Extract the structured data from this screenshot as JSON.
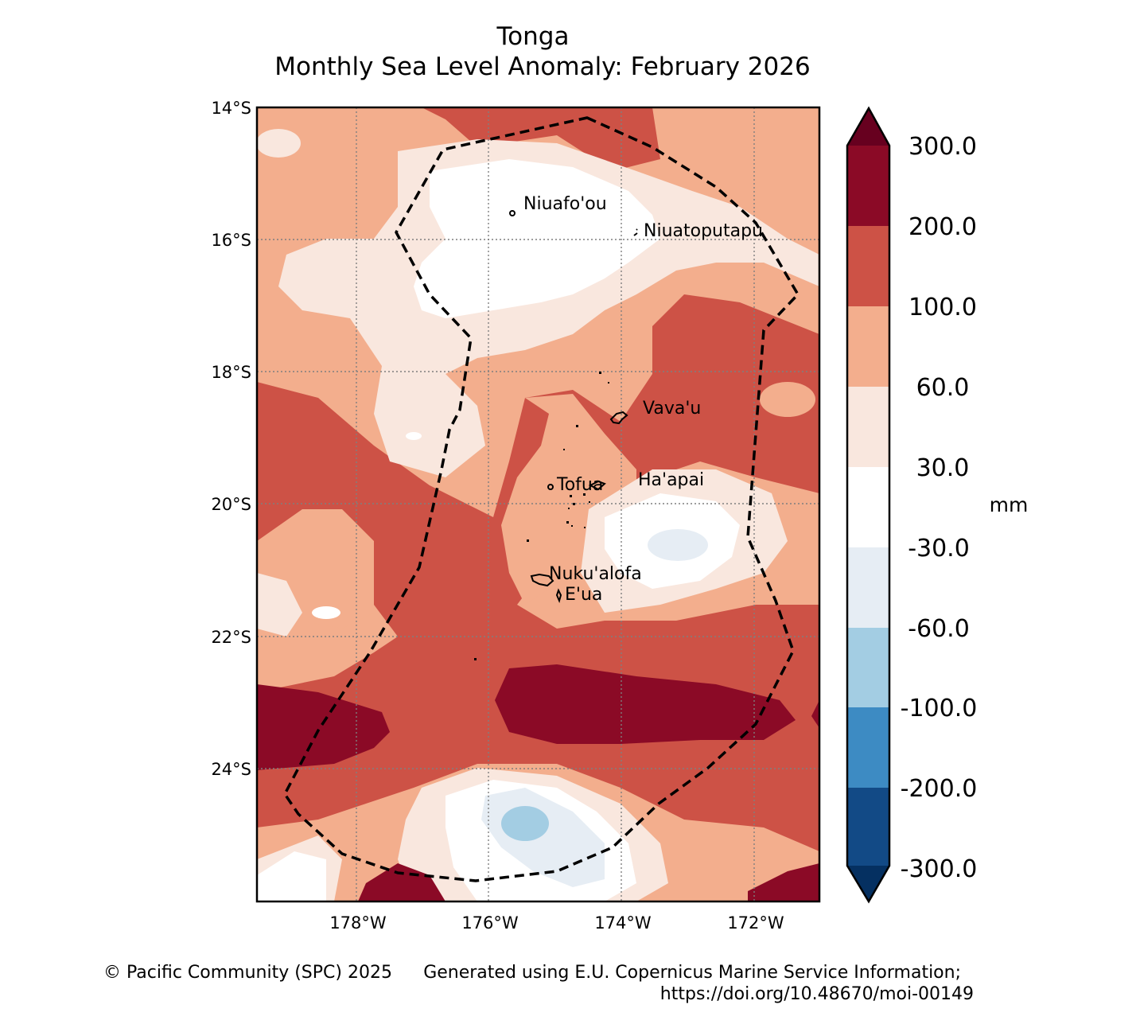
{
  "title": {
    "line1": "Tonga",
    "line2": "Monthly Sea Level Anomaly: February 2026"
  },
  "axes": {
    "lat_labels": [
      "14°S",
      "16°S",
      "18°S",
      "20°S",
      "22°S",
      "24°S"
    ],
    "lon_labels": [
      "178°W",
      "176°W",
      "174°W",
      "172°W"
    ]
  },
  "places": [
    {
      "name": "Niuafo'ou"
    },
    {
      "name": "Niuatoputapu"
    },
    {
      "name": "Vava'u"
    },
    {
      "name": "Tofua"
    },
    {
      "name": "Ha'apai"
    },
    {
      "name": "Nuku'alofa"
    },
    {
      "name": "E'ua"
    }
  ],
  "colorbar": {
    "unit": "mm",
    "ticks": [
      "300.0",
      "200.0",
      "100.0",
      "60.0",
      "30.0",
      "-30.0",
      "-60.0",
      "-100.0",
      "-200.0",
      "-300.0"
    ],
    "colors": {
      "gt300": "#67001f",
      "b200_300": "#8b0a26",
      "b100_200": "#cd5246",
      "b60_100": "#f3ae8d",
      "b30_60": "#f9e7de",
      "b_30_30": "#ffffff",
      "b_60_30": "#e6edf4",
      "b_100_60": "#a3cde3",
      "b_200_100": "#3d8bc3",
      "b_300_200": "#124a86",
      "lt_300": "#053061"
    }
  },
  "credits": {
    "left": "© Pacific Community (SPC) 2025",
    "right_line1": "Generated using E.U. Copernicus Marine Service Information;",
    "right_line2": "https://doi.org/10.48670/moi-00149"
  }
}
